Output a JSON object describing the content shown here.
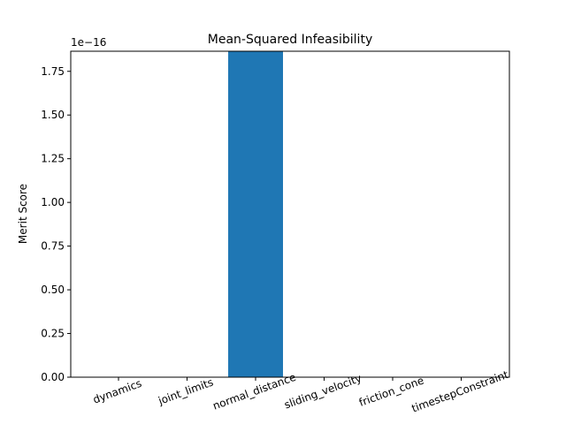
{
  "chart_data": {
    "type": "bar",
    "title": "Mean-Squared Infeasibility",
    "xlabel": "",
    "ylabel": "Merit Score",
    "y_offset_text": "1e−16",
    "y_scale_note": "values in units of 1e-16",
    "categories": [
      "dynamics",
      "joint_limits",
      "normal_distance",
      "sliding_velocity",
      "friction_cone",
      "timestepConstraint"
    ],
    "values": [
      0,
      0,
      1.87,
      0,
      0,
      0
    ],
    "ylim": [
      0,
      1.865
    ],
    "yticks": [
      0.0,
      0.25,
      0.5,
      0.75,
      1.0,
      1.25,
      1.5,
      1.75
    ],
    "ytick_labels": [
      "0.00",
      "0.25",
      "0.50",
      "0.75",
      "1.00",
      "1.25",
      "1.50",
      "1.75"
    ],
    "x_tick_rotation_deg": 20,
    "bar_color": "#1f77b4",
    "grid": false,
    "legend": "none"
  }
}
